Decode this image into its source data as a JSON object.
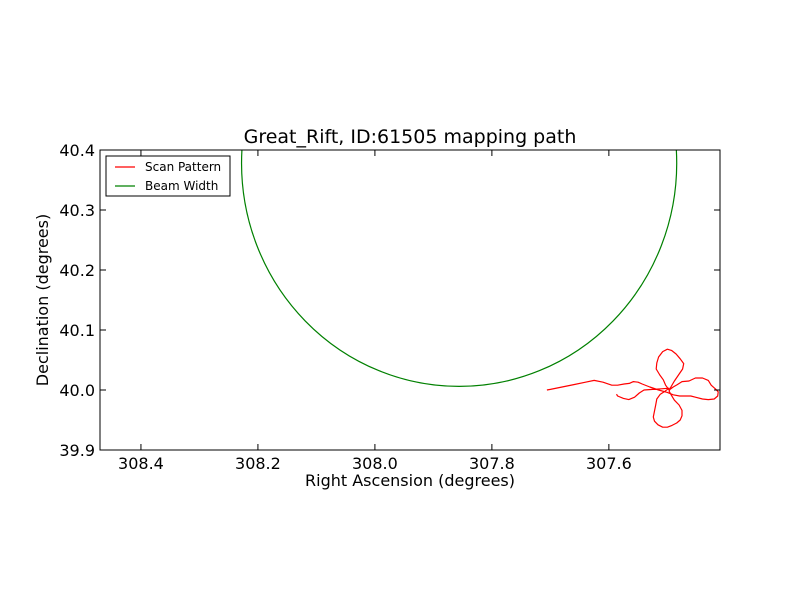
{
  "chart_data": {
    "type": "line",
    "title": "Great_Rift, ID:61505 mapping path",
    "xlabel": "Right Ascension (degrees)",
    "ylabel": "Declination (degrees)",
    "xlim": [
      308.47,
      307.41
    ],
    "ylim": [
      39.9,
      40.4
    ],
    "x_inverted": true,
    "xticks": [
      308.4,
      308.2,
      308.0,
      307.8,
      307.6
    ],
    "xtick_labels": [
      "308.4",
      "308.2",
      "308.0",
      "307.8",
      "307.6"
    ],
    "yticks": [
      39.9,
      40.0,
      40.1,
      40.2,
      40.3,
      40.4
    ],
    "ytick_labels": [
      "39.9",
      "40.0",
      "40.1",
      "40.2",
      "40.3",
      "40.4"
    ],
    "grid": false,
    "legend_position": "top-left",
    "series": [
      {
        "name": "Scan Pattern",
        "color": "#ff0000",
        "points": [
          [
            307.706,
            40.0
          ],
          [
            307.7,
            40.001
          ],
          [
            307.68,
            40.005
          ],
          [
            307.66,
            40.009
          ],
          [
            307.64,
            40.013
          ],
          [
            307.625,
            40.016
          ],
          [
            307.61,
            40.013
          ],
          [
            307.595,
            40.008
          ],
          [
            307.585,
            40.008
          ],
          [
            307.574,
            40.01
          ],
          [
            307.565,
            40.011
          ],
          [
            307.558,
            40.014
          ],
          [
            307.55,
            40.013
          ],
          [
            307.543,
            40.01
          ],
          [
            307.53,
            40.005
          ],
          [
            307.515,
            40.0
          ],
          [
            307.5,
            39.996
          ],
          [
            307.49,
            39.992
          ],
          [
            307.479,
            39.99
          ],
          [
            307.47,
            39.99
          ],
          [
            307.46,
            39.99
          ],
          [
            307.452,
            39.988
          ],
          [
            307.44,
            39.985
          ],
          [
            307.43,
            39.984
          ],
          [
            307.42,
            39.985
          ],
          [
            307.414,
            39.99
          ],
          [
            307.413,
            39.997
          ],
          [
            307.418,
            40.002
          ],
          [
            307.425,
            40.008
          ],
          [
            307.43,
            40.016
          ],
          [
            307.44,
            40.02
          ],
          [
            307.452,
            40.02
          ],
          [
            307.463,
            40.015
          ],
          [
            307.475,
            40.014
          ],
          [
            307.483,
            40.009
          ],
          [
            307.49,
            40.005
          ],
          [
            307.497,
            40.0
          ],
          [
            307.503,
            40.008
          ],
          [
            307.507,
            40.017
          ],
          [
            307.513,
            40.025
          ],
          [
            307.519,
            40.035
          ],
          [
            307.518,
            40.045
          ],
          [
            307.515,
            40.055
          ],
          [
            307.508,
            40.064
          ],
          [
            307.5,
            40.068
          ],
          [
            307.493,
            40.066
          ],
          [
            307.485,
            40.06
          ],
          [
            307.478,
            40.052
          ],
          [
            307.472,
            40.044
          ],
          [
            307.474,
            40.035
          ],
          [
            307.481,
            40.025
          ],
          [
            307.488,
            40.015
          ],
          [
            307.494,
            40.005
          ],
          [
            307.497,
            39.998
          ],
          [
            307.493,
            39.991
          ],
          [
            307.488,
            39.983
          ],
          [
            307.48,
            39.975
          ],
          [
            307.475,
            39.966
          ],
          [
            307.475,
            39.957
          ],
          [
            307.478,
            39.95
          ],
          [
            307.484,
            39.945
          ],
          [
            307.492,
            39.941
          ],
          [
            307.5,
            39.938
          ],
          [
            307.508,
            39.938
          ],
          [
            307.516,
            39.942
          ],
          [
            307.522,
            39.948
          ],
          [
            307.524,
            39.955
          ],
          [
            307.522,
            39.965
          ],
          [
            307.52,
            39.975
          ],
          [
            307.518,
            39.985
          ],
          [
            307.512,
            39.993
          ],
          [
            307.504,
            39.998
          ],
          [
            307.497,
            40.003
          ],
          [
            307.51,
            40.002
          ],
          [
            307.525,
            40.001
          ],
          [
            307.54,
            40.0
          ],
          [
            307.548,
            39.995
          ],
          [
            307.556,
            39.988
          ],
          [
            307.566,
            39.984
          ],
          [
            307.575,
            39.986
          ],
          [
            307.585,
            39.99
          ],
          [
            307.587,
            39.993
          ]
        ]
      },
      {
        "name": "Beam Width",
        "color": "#008000",
        "shape": "circle",
        "center": [
          307.856,
          40.378
        ],
        "radius_deg": 0.372
      }
    ]
  }
}
